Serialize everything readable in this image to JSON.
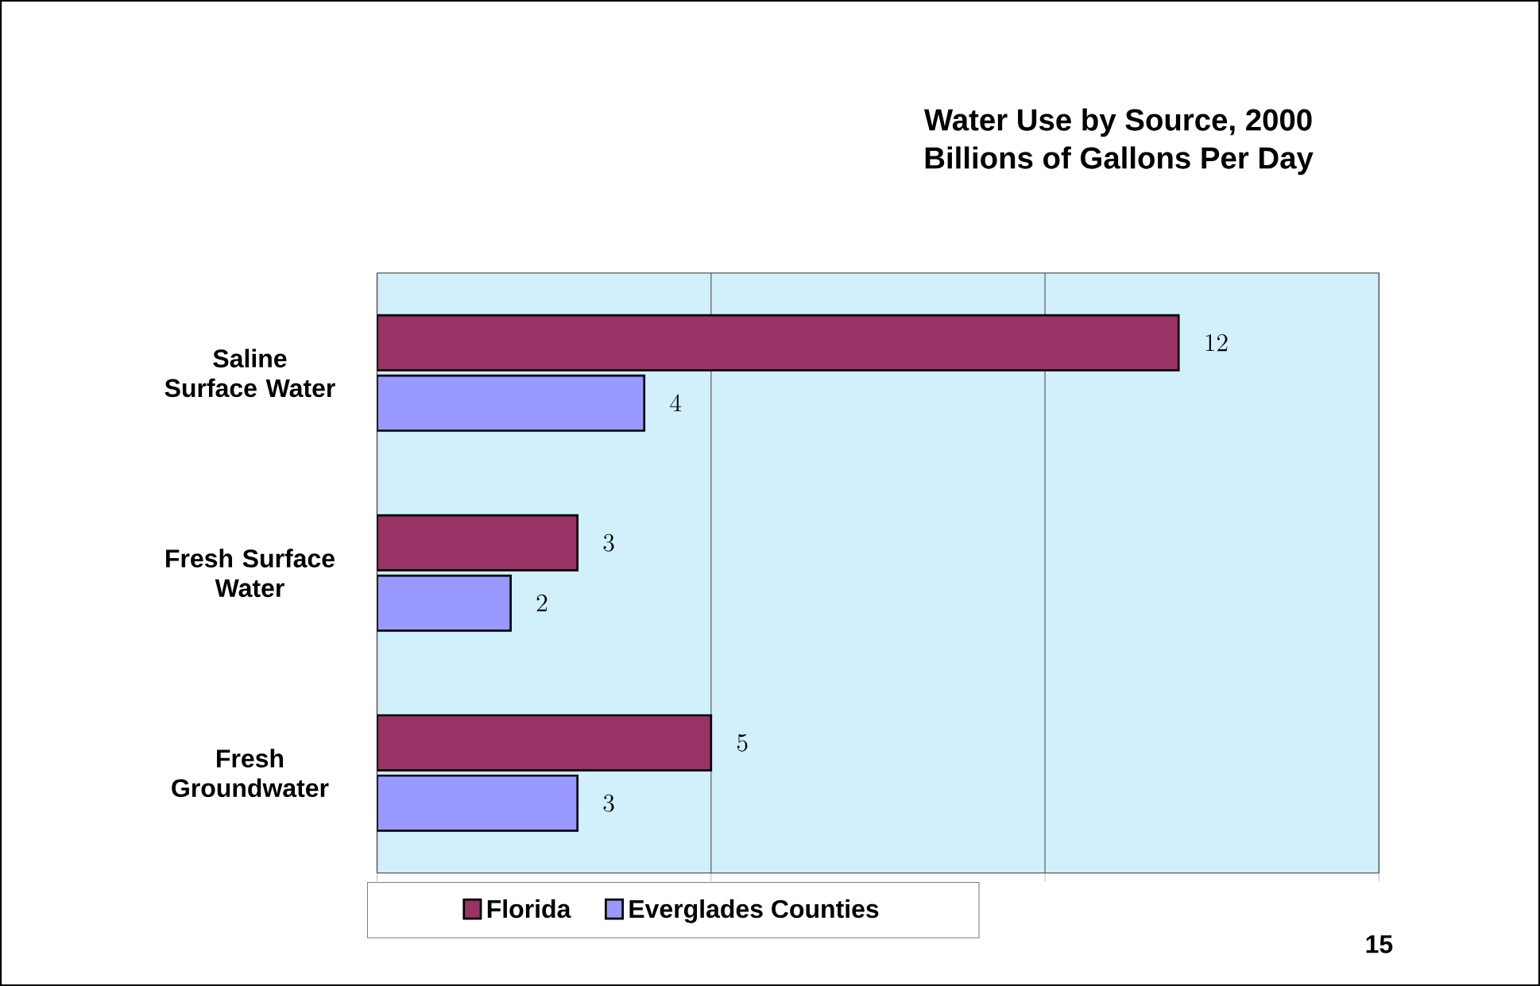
{
  "chart_data": {
    "type": "bar",
    "orientation": "horizontal",
    "title": "Water Use by Source, 2000",
    "subtitle": "Billions of Gallons Per Day",
    "categories": [
      "Saline Surface Water",
      "Fresh Surface Water",
      "Fresh Groundwater"
    ],
    "series": [
      {
        "name": "Florida",
        "color": "#993366",
        "values": [
          12,
          3,
          5
        ]
      },
      {
        "name": "Everglades Counties",
        "color": "#9999ff",
        "values": [
          4,
          2,
          3
        ]
      }
    ],
    "xlim": [
      0,
      15
    ],
    "xticks": [
      {
        "value": 0,
        "label": null
      },
      {
        "value": 5,
        "label": null
      },
      {
        "value": 10,
        "label": null
      },
      15
    ],
    "grid": "x",
    "legend": "bottom",
    "data_labels": true
  }
}
